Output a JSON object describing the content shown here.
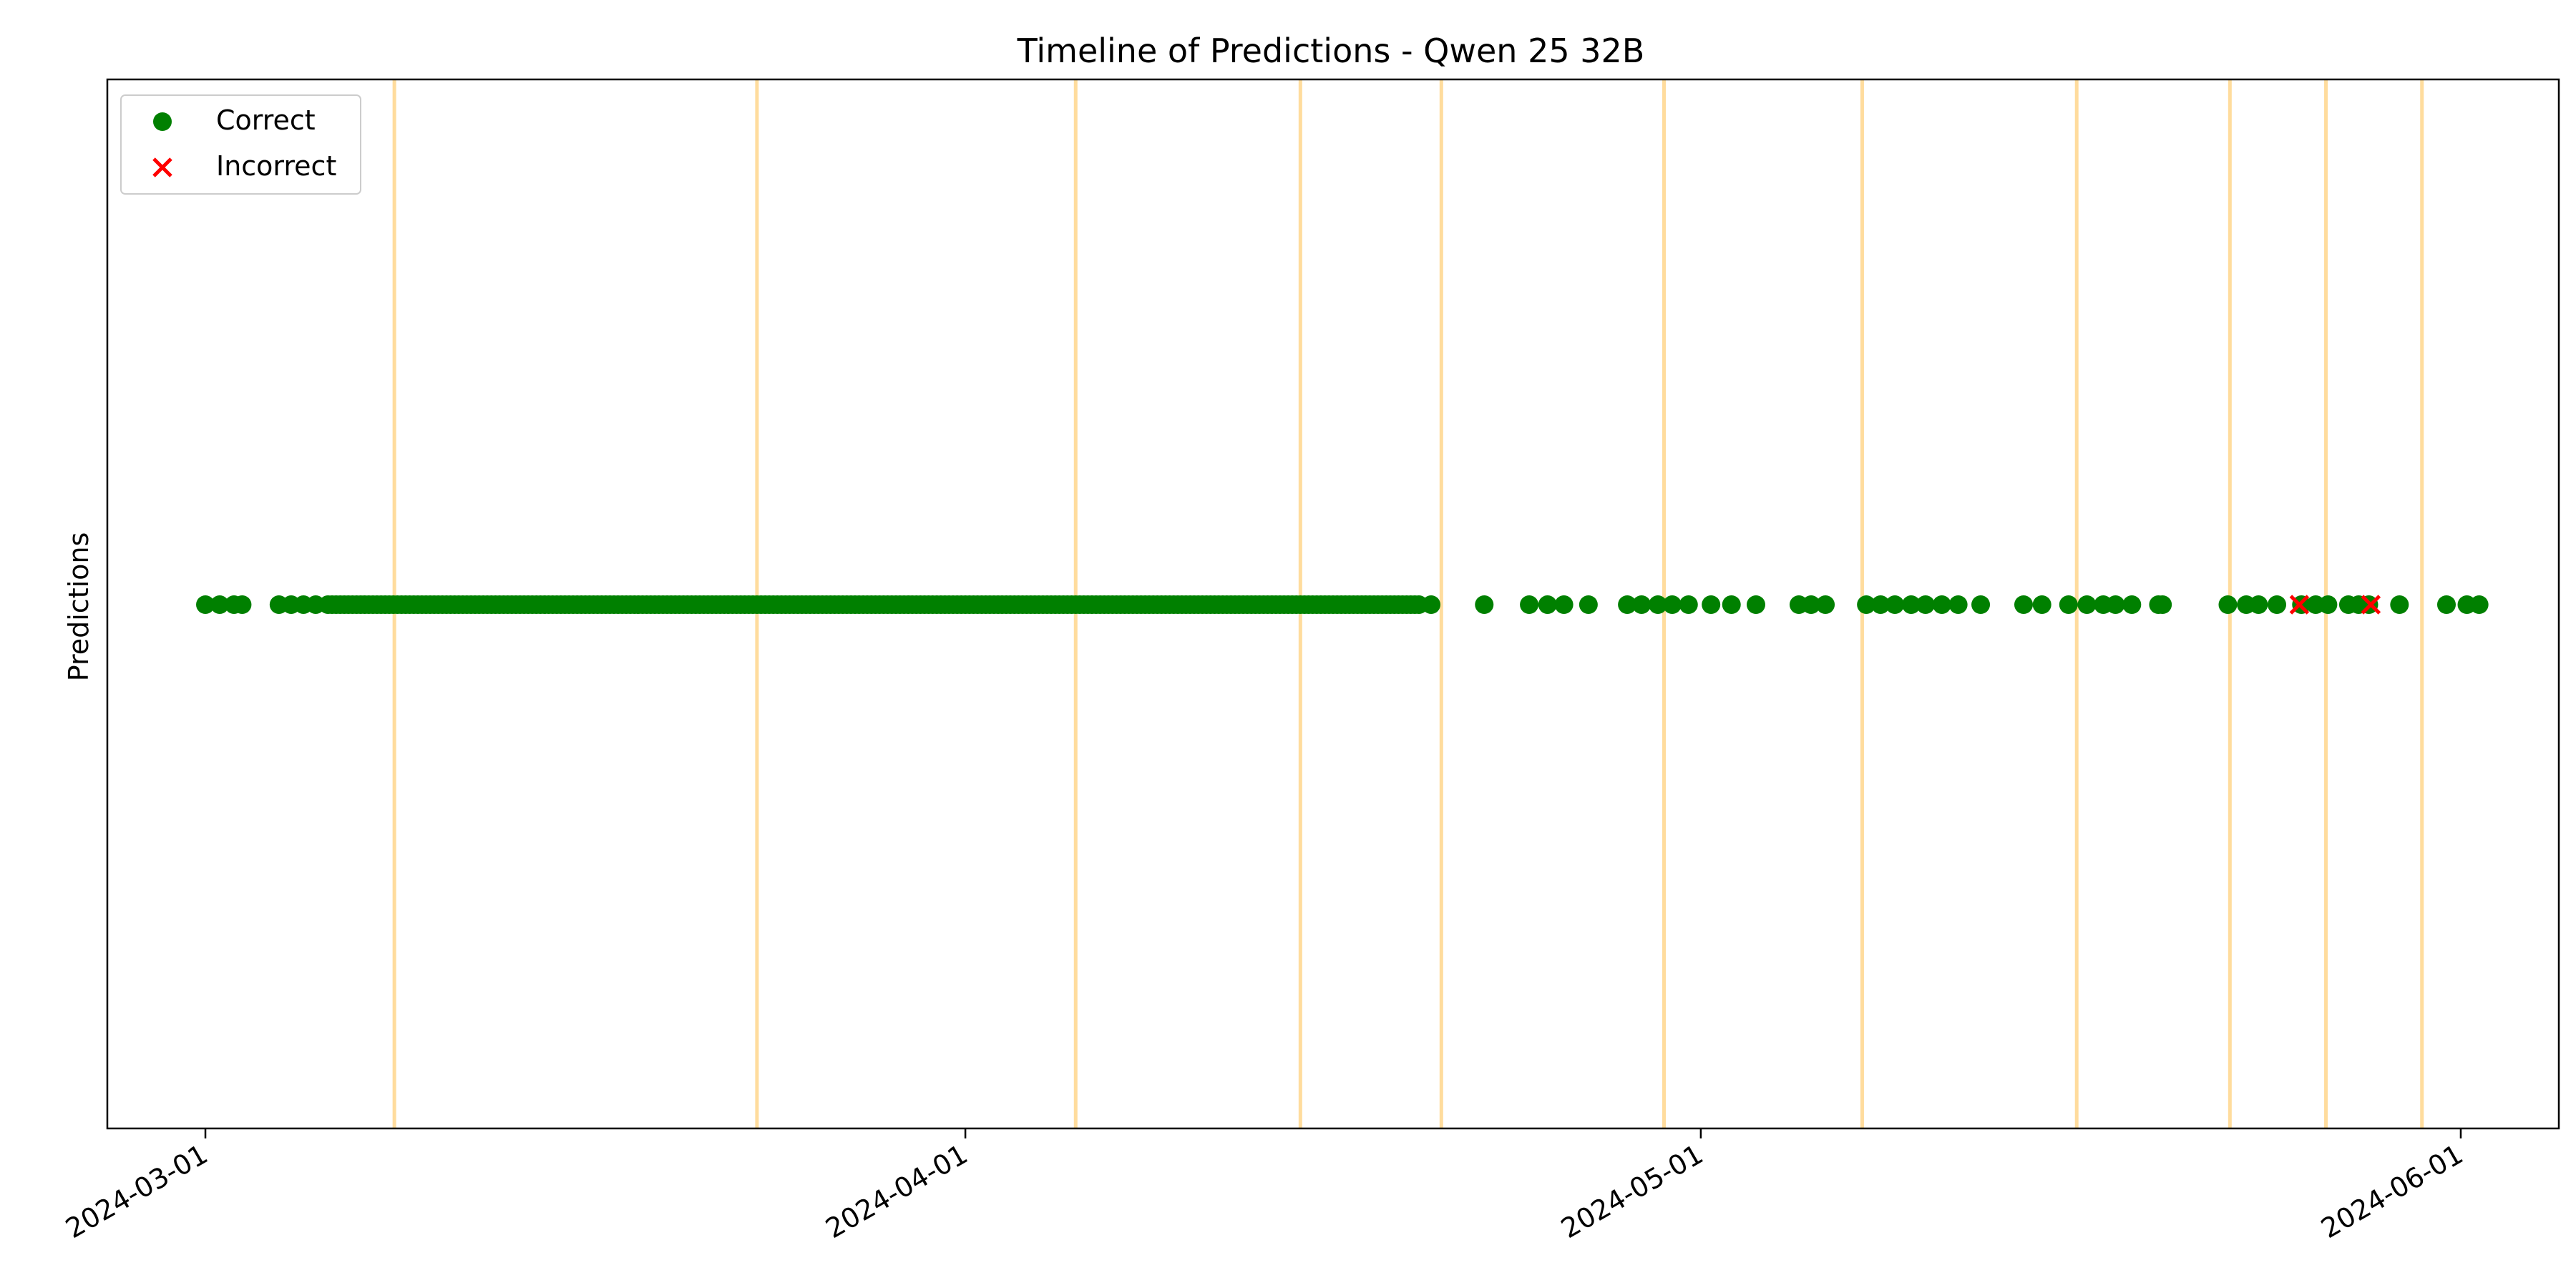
{
  "chart_data": {
    "type": "scatter",
    "title": "Timeline of Predictions - Qwen 25 32B",
    "xlabel": "",
    "ylabel": "Predictions",
    "x_axis_type": "date",
    "xlim": [
      "2024-02-26",
      "2024-06-05"
    ],
    "x_ticks": [
      "2024-03-01",
      "2024-04-01",
      "2024-05-01",
      "2024-06-01"
    ],
    "y_ticks_shown": false,
    "grid": false,
    "legend_position": "top-left",
    "legend": [
      {
        "label": "Correct",
        "marker": "circle",
        "color": "#008000"
      },
      {
        "label": "Incorrect",
        "marker": "x",
        "color": "#ff0000"
      }
    ],
    "vertical_lines": {
      "color": "#ffc04d",
      "dates": [
        "2024-03-08 17:00",
        "2024-03-23 12:00",
        "2024-04-05 12:00",
        "2024-04-14 16:00",
        "2024-04-20 10:00",
        "2024-04-29 12:00",
        "2024-05-07 14:00",
        "2024-05-16 08:00",
        "2024-05-22 14:00",
        "2024-05-26 12:00",
        "2024-05-30 10:00"
      ]
    },
    "dense_correct_range": {
      "start": "2024-03-06",
      "end": "2024-04-19 12:00",
      "step_hours": 4,
      "label": "Correct",
      "value": 1
    },
    "series": [
      {
        "name": "Correct",
        "marker": "circle",
        "color": "#008000",
        "value": 1,
        "x": [
          "2024-03-01",
          "2024-03-01 14:00",
          "2024-03-02 04:00",
          "2024-03-02 12:00",
          "2024-03-04",
          "2024-03-04 12:00",
          "2024-03-05",
          "2024-03-05 12:00",
          "2024-04-20",
          "2024-04-22 04:00",
          "2024-04-24",
          "2024-04-24 18:00",
          "2024-04-25 10:00",
          "2024-04-26 10:00",
          "2024-04-28",
          "2024-04-28 14:00",
          "2024-04-29 06:00",
          "2024-04-29 20:00",
          "2024-04-30 12:00",
          "2024-05-01 10:00",
          "2024-05-02 06:00",
          "2024-05-03 06:00",
          "2024-05-05",
          "2024-05-05 12:00",
          "2024-05-06 02:00",
          "2024-05-07 18:00",
          "2024-05-08 08:00",
          "2024-05-08 22:00",
          "2024-05-09 14:00",
          "2024-05-10 04:00",
          "2024-05-10 20:00",
          "2024-05-11 12:00",
          "2024-05-12 10:00",
          "2024-05-14 04:00",
          "2024-05-14 22:00",
          "2024-05-16",
          "2024-05-16 18:00",
          "2024-05-17 10:00",
          "2024-05-17 22:00",
          "2024-05-18 14:00",
          "2024-05-19 16:00",
          "2024-05-19 20:00",
          "2024-05-22 12:00",
          "2024-05-23 06:00",
          "2024-05-23 18:00",
          "2024-05-24 12:00",
          "2024-05-25 12:00",
          "2024-05-26 02:00",
          "2024-05-26 14:00",
          "2024-05-27 10:00",
          "2024-05-27 20:00",
          "2024-05-28 06:00",
          "2024-05-29 12:00",
          "2024-05-31 10:00",
          "2024-06-01 06:00",
          "2024-06-01 18:00"
        ]
      },
      {
        "name": "Incorrect",
        "marker": "x",
        "color": "#ff0000",
        "value": 1,
        "x": [
          "2024-05-25 10:00",
          "2024-05-28 08:00"
        ]
      }
    ]
  }
}
